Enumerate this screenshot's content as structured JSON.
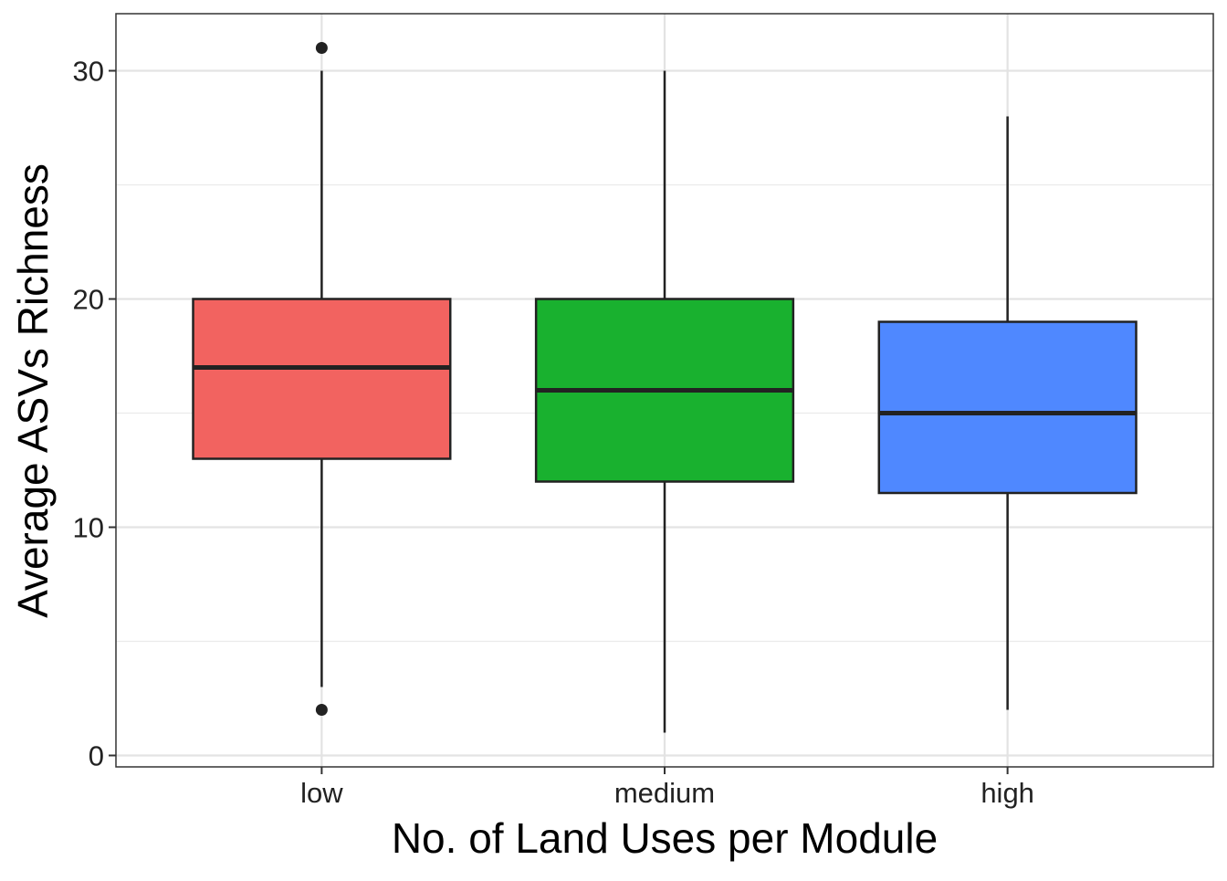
{
  "chart_data": {
    "type": "boxplot",
    "title": "",
    "xlabel": "No. of Land Uses per Module",
    "ylabel": "Average ASVs Richness",
    "categories": [
      "low",
      "medium",
      "high"
    ],
    "ylim": [
      -0.5,
      32.5
    ],
    "yticks": [
      0,
      10,
      20,
      30
    ],
    "grid": true,
    "legend": "none",
    "boxes": [
      {
        "category": "low",
        "whisker_low": 3,
        "q1": 13,
        "median": 17,
        "q3": 20,
        "whisker_high": 30,
        "outliers": [
          31,
          2
        ],
        "color": "#F26360"
      },
      {
        "category": "medium",
        "whisker_low": 1,
        "q1": 12,
        "median": 16,
        "q3": 20,
        "whisker_high": 30,
        "outliers": [],
        "color": "#19B12F"
      },
      {
        "category": "high",
        "whisker_low": 2,
        "q1": 11.5,
        "median": 15,
        "q3": 19,
        "whisker_high": 28,
        "outliers": [],
        "color": "#4F88FF"
      }
    ]
  }
}
